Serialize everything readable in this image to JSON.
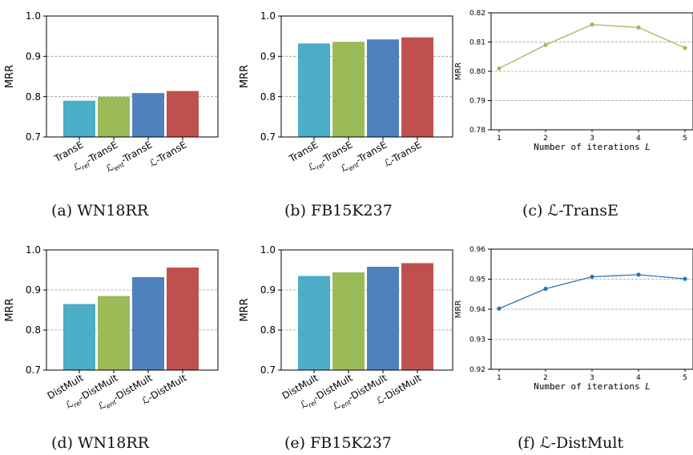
{
  "chart_data": [
    {
      "id": "a",
      "type": "bar",
      "caption": "(a) WN18RR",
      "ylabel": "MRR",
      "ylim": [
        0.7,
        1.0
      ],
      "yticks": [
        "0.7",
        "0.8",
        "0.9",
        "1.0"
      ],
      "categories": [
        "TransE",
        "ℒrel-TransE",
        "ℒent-TransE",
        "ℒ-TransE"
      ],
      "values": [
        0.79,
        0.8,
        0.809,
        0.814
      ],
      "colors": [
        "#4badc6",
        "#9bbb59",
        "#4f81bd",
        "#c0504d"
      ],
      "grid": "horizontal dashed"
    },
    {
      "id": "b",
      "type": "bar",
      "caption": "(b) FB15K237",
      "ylabel": "MRR",
      "ylim": [
        0.7,
        1.0
      ],
      "yticks": [
        "0.7",
        "0.8",
        "0.9",
        "1.0"
      ],
      "categories": [
        "TransE",
        "ℒrel-TransE",
        "ℒent-TransE",
        "ℒ-TransE"
      ],
      "values": [
        0.932,
        0.936,
        0.942,
        0.947
      ],
      "colors": [
        "#4badc6",
        "#9bbb59",
        "#4f81bd",
        "#c0504d"
      ],
      "grid": "horizontal dashed"
    },
    {
      "id": "c",
      "type": "line",
      "caption": "(c) ℒ-TransE",
      "ylabel": "MRR",
      "xlabel": "Number of iterations L",
      "x": [
        1,
        2,
        3,
        4,
        5
      ],
      "values": [
        0.801,
        0.809,
        0.816,
        0.815,
        0.808
      ],
      "ylim": [
        0.78,
        0.82
      ],
      "yticks": [
        "0.78",
        "0.79",
        "0.80",
        "0.81",
        "0.82"
      ],
      "xticks": [
        "1",
        "2",
        "3",
        "4",
        "5"
      ],
      "color": "#9bbb59",
      "grid": "horizontal dashed"
    },
    {
      "id": "d",
      "type": "bar",
      "caption": "(d) WN18RR",
      "ylabel": "MRR",
      "ylim": [
        0.7,
        1.0
      ],
      "yticks": [
        "0.7",
        "0.8",
        "0.9",
        "1.0"
      ],
      "categories": [
        "DistMult",
        "ℒrel-DistMult",
        "ℒent-DistMult",
        "ℒ-DistMult"
      ],
      "values": [
        0.865,
        0.885,
        0.932,
        0.956
      ],
      "colors": [
        "#4badc6",
        "#9bbb59",
        "#4f81bd",
        "#c0504d"
      ],
      "grid": "horizontal dashed"
    },
    {
      "id": "e",
      "type": "bar",
      "caption": "(e) FB15K237",
      "ylabel": "MRR",
      "ylim": [
        0.7,
        1.0
      ],
      "yticks": [
        "0.7",
        "0.8",
        "0.9",
        "1.0"
      ],
      "categories": [
        "DistMult",
        "ℒrel-DistMult",
        "ℒent-DistMult",
        "ℒ-DistMult"
      ],
      "values": [
        0.935,
        0.944,
        0.958,
        0.967
      ],
      "colors": [
        "#4badc6",
        "#9bbb59",
        "#4f81bd",
        "#c0504d"
      ],
      "grid": "horizontal dashed"
    },
    {
      "id": "f",
      "type": "line",
      "caption": "(f) ℒ-DistMult",
      "ylabel": "MRR",
      "xlabel": "Number of iterations L",
      "x": [
        1,
        2,
        3,
        4,
        5
      ],
      "values": [
        0.9402,
        0.9468,
        0.9508,
        0.9515,
        0.9501
      ],
      "ylim": [
        0.92,
        0.96
      ],
      "yticks": [
        "0.92",
        "0.93",
        "0.94",
        "0.95",
        "0.96"
      ],
      "xticks": [
        "1",
        "2",
        "3",
        "4",
        "5"
      ],
      "color": "#2e75b6",
      "grid": "horizontal dashed"
    }
  ]
}
